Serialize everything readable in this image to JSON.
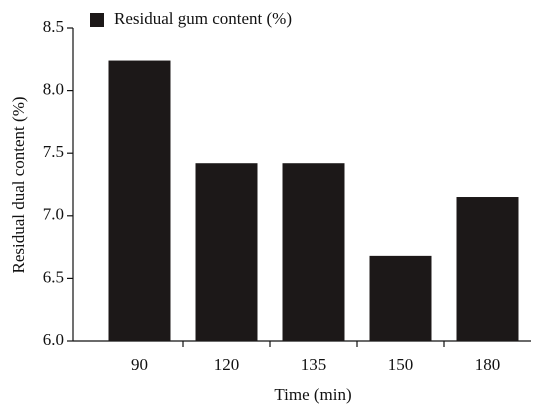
{
  "chart_data": {
    "type": "bar",
    "xlabel": "Time (min)",
    "ylabel": "Residual dual content (%)",
    "categories": [
      "90",
      "120",
      "135",
      "150",
      "180"
    ],
    "series": [
      {
        "name": "Residual gum content (%)",
        "color": "#1c1818",
        "values": [
          8.24,
          7.42,
          7.42,
          6.68,
          7.15
        ]
      }
    ],
    "ylim": [
      6.0,
      8.5
    ],
    "yticks": [
      {
        "value": 6,
        "label": "6.0"
      },
      6.5,
      {
        "value": 7,
        "label": "7.0"
      },
      7.5,
      {
        "value": 8,
        "label": "8.0"
      },
      8.5
    ],
    "legend": "top-left"
  }
}
